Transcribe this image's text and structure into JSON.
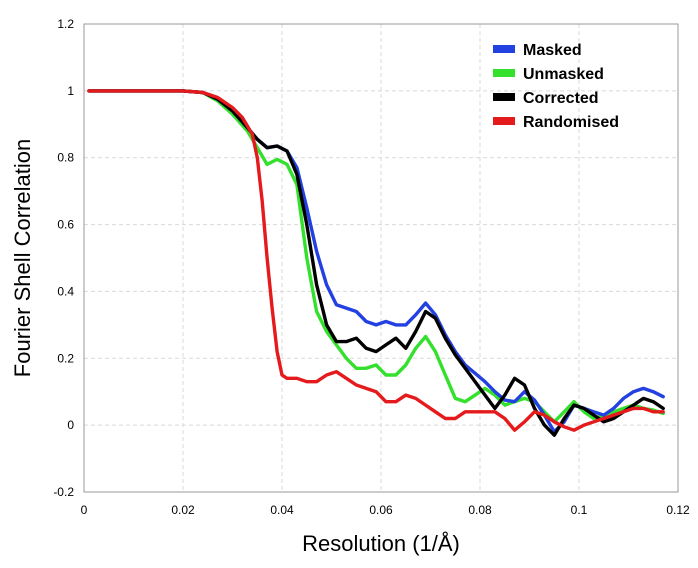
{
  "chart_data": {
    "type": "line",
    "title": "",
    "xlabel": "Resolution (1/Å)",
    "ylabel": "Fourier Shell Correlation",
    "xlim": [
      0,
      0.12
    ],
    "ylim": [
      -0.2,
      1.2
    ],
    "x_ticks": [
      "0",
      "0.02",
      "0.04",
      "0.06",
      "0.08",
      "0.1",
      "0.12"
    ],
    "y_ticks": [
      "-0.2",
      "0",
      "0.2",
      "0.4",
      "0.6",
      "0.8",
      "1",
      "1.2"
    ],
    "grid": true,
    "legend_position": "top-right",
    "series": [
      {
        "name": "Masked",
        "color": "#2340e0",
        "points": [
          [
            0.001,
            1
          ],
          [
            0.01,
            1
          ],
          [
            0.02,
            1
          ],
          [
            0.024,
            0.995
          ],
          [
            0.027,
            0.975
          ],
          [
            0.03,
            0.94
          ],
          [
            0.033,
            0.89
          ],
          [
            0.035,
            0.855
          ],
          [
            0.037,
            0.83
          ],
          [
            0.039,
            0.835
          ],
          [
            0.041,
            0.82
          ],
          [
            0.043,
            0.77
          ],
          [
            0.045,
            0.65
          ],
          [
            0.047,
            0.52
          ],
          [
            0.049,
            0.42
          ],
          [
            0.051,
            0.36
          ],
          [
            0.053,
            0.35
          ],
          [
            0.055,
            0.34
          ],
          [
            0.057,
            0.31
          ],
          [
            0.059,
            0.3
          ],
          [
            0.061,
            0.31
          ],
          [
            0.063,
            0.3
          ],
          [
            0.065,
            0.3
          ],
          [
            0.067,
            0.33
          ],
          [
            0.069,
            0.365
          ],
          [
            0.071,
            0.33
          ],
          [
            0.073,
            0.27
          ],
          [
            0.075,
            0.22
          ],
          [
            0.077,
            0.18
          ],
          [
            0.079,
            0.155
          ],
          [
            0.081,
            0.13
          ],
          [
            0.083,
            0.1
          ],
          [
            0.085,
            0.075
          ],
          [
            0.087,
            0.07
          ],
          [
            0.089,
            0.1
          ],
          [
            0.091,
            0.075
          ],
          [
            0.093,
            0.03
          ],
          [
            0.095,
            -0.02
          ],
          [
            0.097,
            0.01
          ],
          [
            0.099,
            0.06
          ],
          [
            0.101,
            0.05
          ],
          [
            0.103,
            0.04
          ],
          [
            0.105,
            0.03
          ],
          [
            0.107,
            0.05
          ],
          [
            0.109,
            0.08
          ],
          [
            0.111,
            0.1
          ],
          [
            0.113,
            0.11
          ],
          [
            0.115,
            0.1
          ],
          [
            0.117,
            0.085
          ]
        ]
      },
      {
        "name": "Unmasked",
        "color": "#33e02c",
        "points": [
          [
            0.001,
            1
          ],
          [
            0.01,
            1
          ],
          [
            0.02,
            1
          ],
          [
            0.024,
            0.995
          ],
          [
            0.027,
            0.97
          ],
          [
            0.03,
            0.93
          ],
          [
            0.033,
            0.88
          ],
          [
            0.035,
            0.83
          ],
          [
            0.037,
            0.78
          ],
          [
            0.039,
            0.795
          ],
          [
            0.041,
            0.78
          ],
          [
            0.043,
            0.72
          ],
          [
            0.045,
            0.5
          ],
          [
            0.047,
            0.34
          ],
          [
            0.049,
            0.28
          ],
          [
            0.051,
            0.24
          ],
          [
            0.053,
            0.2
          ],
          [
            0.055,
            0.17
          ],
          [
            0.057,
            0.17
          ],
          [
            0.059,
            0.18
          ],
          [
            0.061,
            0.15
          ],
          [
            0.063,
            0.15
          ],
          [
            0.065,
            0.18
          ],
          [
            0.067,
            0.23
          ],
          [
            0.069,
            0.265
          ],
          [
            0.071,
            0.22
          ],
          [
            0.073,
            0.15
          ],
          [
            0.075,
            0.08
          ],
          [
            0.077,
            0.07
          ],
          [
            0.079,
            0.09
          ],
          [
            0.081,
            0.11
          ],
          [
            0.083,
            0.09
          ],
          [
            0.085,
            0.06
          ],
          [
            0.087,
            0.07
          ],
          [
            0.089,
            0.08
          ],
          [
            0.091,
            0.07
          ],
          [
            0.093,
            0.04
          ],
          [
            0.095,
            0.01
          ],
          [
            0.097,
            0.04
          ],
          [
            0.099,
            0.07
          ],
          [
            0.101,
            0.04
          ],
          [
            0.103,
            0.02
          ],
          [
            0.105,
            0.03
          ],
          [
            0.107,
            0.04
          ],
          [
            0.109,
            0.05
          ],
          [
            0.111,
            0.06
          ],
          [
            0.113,
            0.05
          ],
          [
            0.115,
            0.045
          ],
          [
            0.117,
            0.035
          ]
        ]
      },
      {
        "name": "Corrected",
        "color": "#000000",
        "points": [
          [
            0.001,
            1
          ],
          [
            0.01,
            1
          ],
          [
            0.02,
            1
          ],
          [
            0.024,
            0.995
          ],
          [
            0.027,
            0.975
          ],
          [
            0.03,
            0.94
          ],
          [
            0.033,
            0.89
          ],
          [
            0.035,
            0.855
          ],
          [
            0.037,
            0.83
          ],
          [
            0.039,
            0.835
          ],
          [
            0.041,
            0.82
          ],
          [
            0.043,
            0.75
          ],
          [
            0.045,
            0.6
          ],
          [
            0.047,
            0.42
          ],
          [
            0.049,
            0.3
          ],
          [
            0.051,
            0.25
          ],
          [
            0.053,
            0.25
          ],
          [
            0.055,
            0.26
          ],
          [
            0.057,
            0.23
          ],
          [
            0.059,
            0.22
          ],
          [
            0.061,
            0.24
          ],
          [
            0.063,
            0.26
          ],
          [
            0.065,
            0.23
          ],
          [
            0.067,
            0.28
          ],
          [
            0.069,
            0.34
          ],
          [
            0.071,
            0.32
          ],
          [
            0.073,
            0.26
          ],
          [
            0.075,
            0.21
          ],
          [
            0.077,
            0.17
          ],
          [
            0.079,
            0.13
          ],
          [
            0.081,
            0.09
          ],
          [
            0.083,
            0.05
          ],
          [
            0.085,
            0.09
          ],
          [
            0.087,
            0.14
          ],
          [
            0.089,
            0.12
          ],
          [
            0.091,
            0.05
          ],
          [
            0.093,
            0.0
          ],
          [
            0.095,
            -0.03
          ],
          [
            0.097,
            0.02
          ],
          [
            0.099,
            0.06
          ],
          [
            0.101,
            0.05
          ],
          [
            0.103,
            0.03
          ],
          [
            0.105,
            0.01
          ],
          [
            0.107,
            0.02
          ],
          [
            0.109,
            0.04
          ],
          [
            0.111,
            0.06
          ],
          [
            0.113,
            0.08
          ],
          [
            0.115,
            0.07
          ],
          [
            0.117,
            0.05
          ]
        ]
      },
      {
        "name": "Randomised",
        "color": "#e41a1c",
        "points": [
          [
            0.001,
            1
          ],
          [
            0.01,
            1
          ],
          [
            0.02,
            1
          ],
          [
            0.024,
            0.995
          ],
          [
            0.027,
            0.98
          ],
          [
            0.03,
            0.95
          ],
          [
            0.032,
            0.92
          ],
          [
            0.034,
            0.87
          ],
          [
            0.035,
            0.8
          ],
          [
            0.036,
            0.67
          ],
          [
            0.037,
            0.5
          ],
          [
            0.038,
            0.35
          ],
          [
            0.039,
            0.22
          ],
          [
            0.04,
            0.15
          ],
          [
            0.041,
            0.14
          ],
          [
            0.043,
            0.14
          ],
          [
            0.045,
            0.13
          ],
          [
            0.047,
            0.13
          ],
          [
            0.049,
            0.15
          ],
          [
            0.051,
            0.16
          ],
          [
            0.053,
            0.14
          ],
          [
            0.055,
            0.12
          ],
          [
            0.057,
            0.11
          ],
          [
            0.059,
            0.1
          ],
          [
            0.061,
            0.07
          ],
          [
            0.063,
            0.07
          ],
          [
            0.065,
            0.09
          ],
          [
            0.067,
            0.08
          ],
          [
            0.069,
            0.06
          ],
          [
            0.071,
            0.04
          ],
          [
            0.073,
            0.02
          ],
          [
            0.075,
            0.02
          ],
          [
            0.077,
            0.04
          ],
          [
            0.079,
            0.04
          ],
          [
            0.081,
            0.04
          ],
          [
            0.083,
            0.04
          ],
          [
            0.085,
            0.02
          ],
          [
            0.087,
            -0.015
          ],
          [
            0.089,
            0.01
          ],
          [
            0.091,
            0.04
          ],
          [
            0.093,
            0.03
          ],
          [
            0.095,
            0.01
          ],
          [
            0.097,
            -0.005
          ],
          [
            0.099,
            -0.015
          ],
          [
            0.101,
            0.0
          ],
          [
            0.103,
            0.01
          ],
          [
            0.105,
            0.02
          ],
          [
            0.107,
            0.03
          ],
          [
            0.109,
            0.04
          ],
          [
            0.111,
            0.05
          ],
          [
            0.113,
            0.05
          ],
          [
            0.115,
            0.04
          ],
          [
            0.117,
            0.04
          ]
        ]
      }
    ]
  }
}
